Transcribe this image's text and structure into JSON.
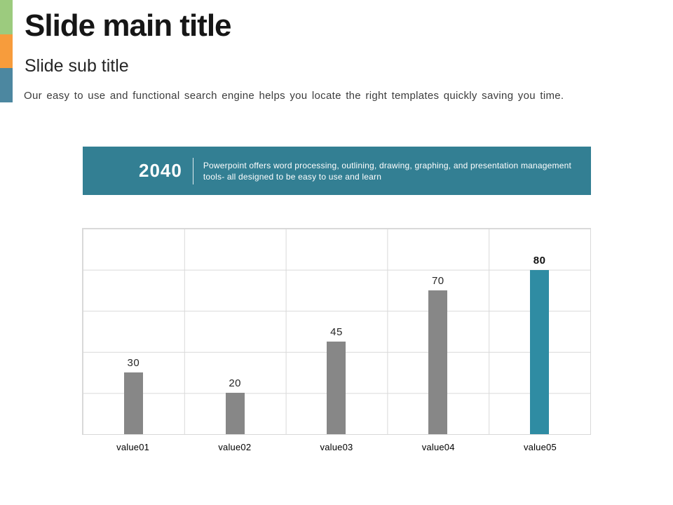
{
  "slide": {
    "title": "Slide main title",
    "subtitle": "Slide sub title",
    "description": "Our easy to use and functional search engine  helps you locate the right templates quickly saving you time.",
    "accent_strip_colors": [
      "#9CCB7E",
      "#F79C3C",
      "#4C87A0"
    ]
  },
  "banner": {
    "year": "2040",
    "description": "Powerpoint offers word processing, outlining, drawing, graphing, and presentation management tools- all designed to be easy to use and learn",
    "background_color": "#337F93",
    "text_color": "#FFFFFF"
  },
  "chart_data": {
    "type": "bar",
    "categories": [
      "value01",
      "value02",
      "value03",
      "value04",
      "value05"
    ],
    "values": [
      30,
      20,
      45,
      70,
      80
    ],
    "bar_colors": [
      "#878787",
      "#878787",
      "#878787",
      "#878787",
      "#2F8CA3"
    ],
    "emphasis_index": 4,
    "title": "",
    "xlabel": "",
    "ylabel": "",
    "ylim": [
      0,
      100
    ],
    "grid": true,
    "gridline_color": "#D9D9D9",
    "legend": false,
    "data_labels_shown": true
  }
}
